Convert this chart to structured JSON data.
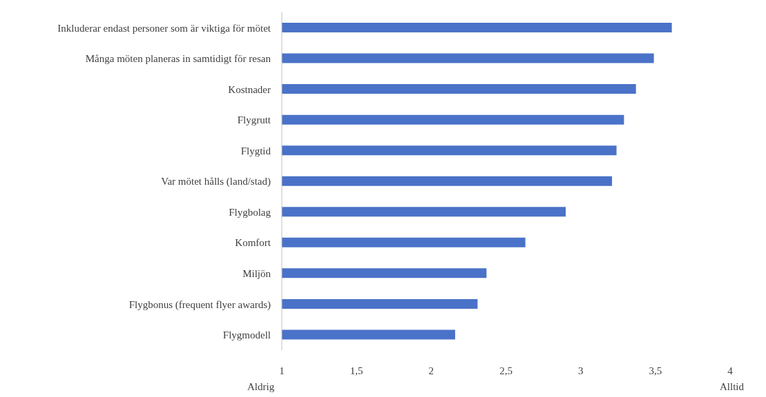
{
  "chart_data": {
    "type": "bar",
    "orientation": "horizontal",
    "categories": [
      "Inkluderar endast personer som är viktiga för mötet",
      "Många möten planeras in samtidigt för resan",
      "Kostnader",
      "Flygrutt",
      "Flygtid",
      "Var mötet hålls (land/stad)",
      "Flygbolag",
      "Komfort",
      "Miljön",
      "Flygbonus (frequent flyer awards)",
      "Flygmodell"
    ],
    "values": [
      3.61,
      3.49,
      3.37,
      3.29,
      3.24,
      3.21,
      2.9,
      2.63,
      2.37,
      2.31,
      2.16
    ],
    "color": "#4a72c8",
    "xlim": [
      1,
      4
    ],
    "xticks": [
      1,
      {
        "value": 1.5,
        "label": "1,5"
      },
      2,
      {
        "value": 2.5,
        "label": "2,5"
      },
      3,
      {
        "value": 3.5,
        "label": "3,5"
      },
      4
    ],
    "grid": false,
    "legend": false,
    "annotations": [
      "Aldrig",
      "Alltid"
    ]
  }
}
